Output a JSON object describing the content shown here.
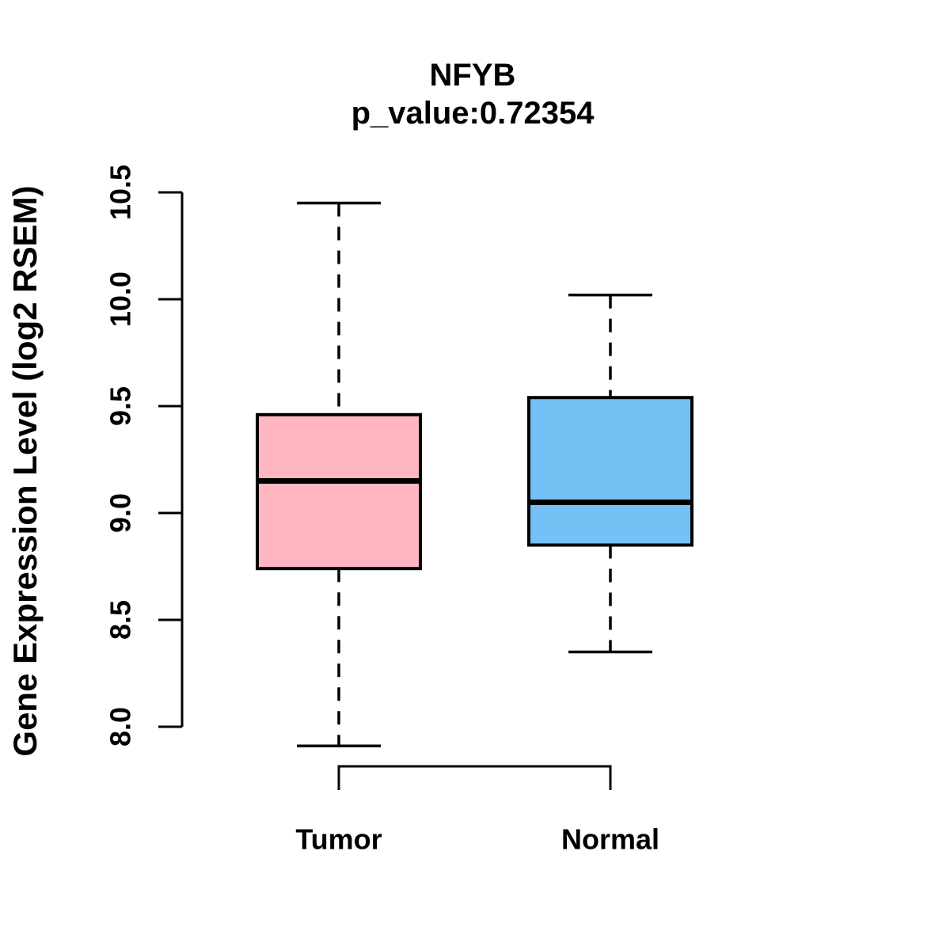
{
  "title": "NFYB",
  "subtitle": "p_value:0.72354",
  "chart_data": {
    "type": "boxplot",
    "title": "NFYB",
    "subtitle": "p_value:0.72354",
    "ylabel": "Gene Expression Level (log2 RSEM)",
    "ylim": [
      8.0,
      10.5
    ],
    "yticks": [
      8.0,
      8.5,
      9.0,
      9.5,
      10.0,
      10.5
    ],
    "ytick_labels": [
      "8.0",
      "8.5",
      "9.0",
      "9.5",
      "10.0",
      "10.5"
    ],
    "categories": [
      "Tumor",
      "Normal"
    ],
    "grid": false,
    "legend": "none",
    "axis_color": "#000000",
    "whisker_style": "dashed",
    "series": [
      {
        "name": "Tumor",
        "min": 7.91,
        "q1": 8.74,
        "median": 9.15,
        "q3": 9.46,
        "max": 10.45,
        "fill": "#FFB6C1"
      },
      {
        "name": "Normal",
        "min": 8.35,
        "q1": 8.85,
        "median": 9.05,
        "q3": 9.54,
        "max": 10.02,
        "fill": "#75C0F4"
      }
    ]
  }
}
